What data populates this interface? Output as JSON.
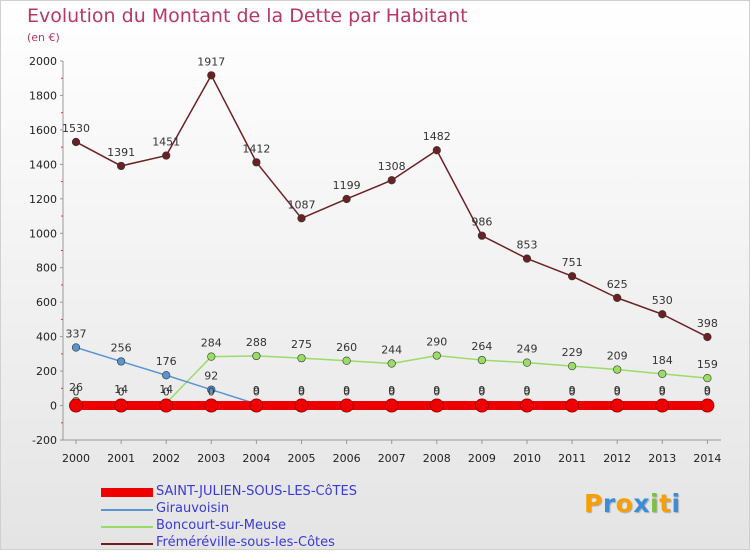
{
  "header": {
    "title": "Evolution du Montant de la Dette par Habitant",
    "unit": "(en €)"
  },
  "chart_data": {
    "type": "line",
    "x": [
      2000,
      2001,
      2002,
      2003,
      2004,
      2005,
      2006,
      2007,
      2008,
      2009,
      2010,
      2011,
      2012,
      2013,
      2014
    ],
    "ylim": [
      -200,
      2000
    ],
    "yticks": [
      -200,
      0,
      200,
      400,
      600,
      800,
      1000,
      1200,
      1400,
      1600,
      1800,
      2000
    ],
    "grid": false,
    "legend_position": "bottom",
    "series": [
      {
        "name": "SAINT-JULIEN-SOUS-LES-CôTES",
        "color": "#ee0000",
        "values": [
          0,
          0,
          0,
          0,
          0,
          0,
          0,
          0,
          0,
          0,
          0,
          0,
          0,
          0,
          0
        ],
        "labels": [
          "0",
          "0",
          "0",
          "0",
          "0",
          "0",
          "0",
          "0",
          "0",
          "0",
          "0",
          "0",
          "0",
          "0",
          "0"
        ]
      },
      {
        "name": "Girauvoisin",
        "color": "#5b95cf",
        "values": [
          337,
          256,
          176,
          92,
          9,
          9,
          9,
          9,
          9,
          9,
          9,
          9,
          9,
          9,
          9
        ],
        "labels": [
          "337",
          "256",
          "176",
          "92",
          "9",
          "9",
          "9",
          "9",
          "9",
          "9",
          "9",
          "9",
          "9",
          "9",
          "9"
        ]
      },
      {
        "name": "Boncourt-sur-Meuse",
        "color": "#99dd66",
        "values": [
          26,
          14,
          14,
          284,
          288,
          275,
          260,
          244,
          290,
          264,
          249,
          229,
          209,
          184,
          159
        ],
        "labels": [
          "26",
          "14",
          "14",
          "284",
          "288",
          "275",
          "260",
          "244",
          "290",
          "264",
          "249",
          "229",
          "209",
          "184",
          "159"
        ]
      },
      {
        "name": "Fréméréville-sous-les-Côtes",
        "color": "#6b2123",
        "values": [
          1530,
          1391,
          1451,
          1917,
          1412,
          1087,
          1199,
          1308,
          1482,
          986,
          853,
          751,
          625,
          530,
          398
        ],
        "labels": [
          "1530",
          "1391",
          "1451",
          "1917",
          "1412",
          "1087",
          "1199",
          "1308",
          "1482",
          "986",
          "853",
          "751",
          "625",
          "530",
          "398"
        ]
      }
    ]
  },
  "logo": {
    "text": "Proxiti",
    "letter_colors": [
      "#f5a000",
      "#3c8dd6",
      "#f5a000",
      "#3c8dd6",
      "#7bc042",
      "#f5a000",
      "#3c8dd6"
    ]
  }
}
